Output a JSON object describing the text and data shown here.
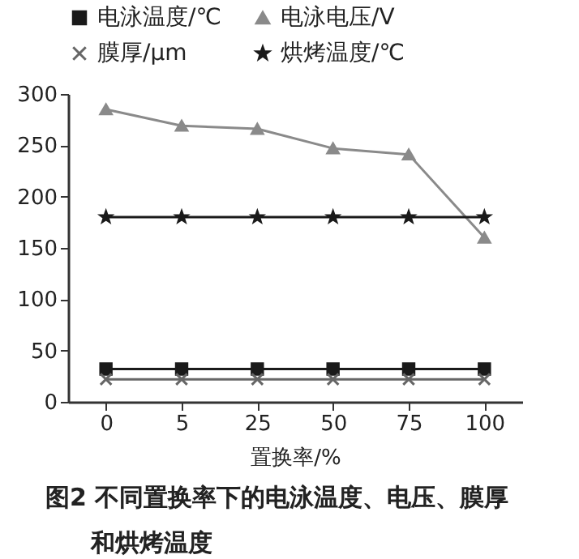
{
  "chart_data": {
    "type": "line",
    "xlabel": "置换率/%",
    "categories": [
      "0",
      "5",
      "25",
      "50",
      "75",
      "100"
    ],
    "series": [
      {
        "name": "电泳温度/℃",
        "color": "#1a1a1a",
        "marker": "square",
        "values": [
          32,
          32,
          32,
          32,
          32,
          32
        ]
      },
      {
        "name": "电泳电压/V",
        "color": "#8a8a8a",
        "marker": "triangle",
        "values": [
          285,
          269,
          266,
          247,
          241,
          160
        ]
      },
      {
        "name": "膜厚/μm",
        "color": "#666666",
        "marker": "cross",
        "values": [
          22,
          22,
          22,
          22,
          22,
          22
        ]
      },
      {
        "name": "烘烤温度/℃",
        "color": "#1a1a1a",
        "marker": "star",
        "values": [
          180,
          180,
          180,
          180,
          180,
          180
        ]
      }
    ],
    "ylim": [
      0,
      300
    ],
    "yticks": [
      0,
      50,
      100,
      150,
      200,
      250,
      300
    ],
    "legend": "top",
    "annotations": [
      "图2 不同置换率下的电泳温度、电压、膜厚和烘烤温度"
    ]
  }
}
